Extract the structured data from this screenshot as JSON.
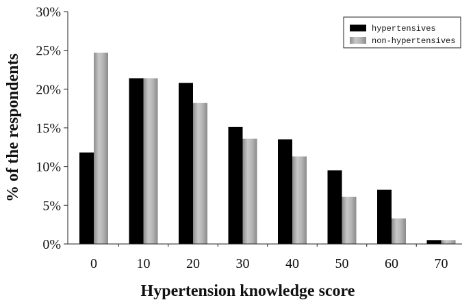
{
  "chart_data": {
    "type": "bar",
    "categories": [
      "0",
      "10",
      "20",
      "30",
      "40",
      "50",
      "60",
      "70"
    ],
    "series": [
      {
        "name": "hypertensives",
        "color": "#000000",
        "values": [
          11.8,
          21.4,
          20.8,
          15.1,
          13.5,
          9.5,
          7.0,
          0.5
        ]
      },
      {
        "name": "non-hypertensives",
        "color": "#a6a6a6",
        "values": [
          24.7,
          21.4,
          18.2,
          13.6,
          11.3,
          6.1,
          3.3,
          0.5
        ]
      }
    ],
    "title": "",
    "xlabel": "Hypertension knowledge score",
    "ylabel": "% of the respondents",
    "ylim": [
      0,
      30
    ],
    "yticks": [
      "0%",
      "5%",
      "10%",
      "15%",
      "20%",
      "25%",
      "30%"
    ],
    "grid": false,
    "legend": "top-right"
  }
}
